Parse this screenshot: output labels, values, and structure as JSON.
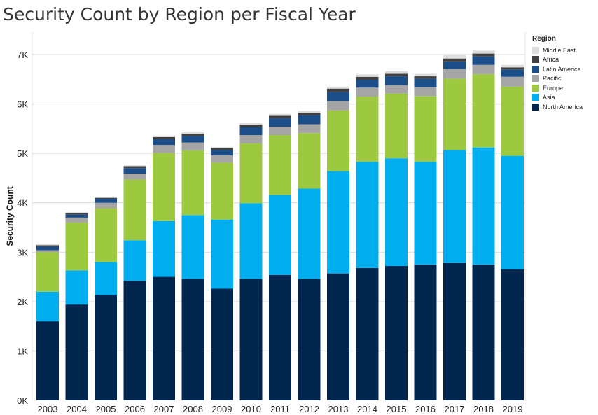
{
  "chart_data": {
    "type": "bar",
    "stacked": true,
    "title": "Security Count by Region per Fiscal Year",
    "xlabel": "",
    "ylabel": "Security Count",
    "ylim": [
      0,
      7000
    ],
    "yticks": [
      0,
      1000,
      2000,
      3000,
      4000,
      5000,
      6000,
      7000
    ],
    "ytick_labels": [
      "0K",
      "1K",
      "2K",
      "3K",
      "4K",
      "5K",
      "6K",
      "7K"
    ],
    "grid": true,
    "legend_title": "Region",
    "legend_position": "top-right",
    "categories": [
      "2003",
      "2004",
      "2005",
      "2006",
      "2007",
      "2008",
      "2009",
      "2010",
      "2011",
      "2012",
      "2013",
      "2014",
      "2015",
      "2016",
      "2017",
      "2018",
      "2019"
    ],
    "series": [
      {
        "name": "North America",
        "color": "#00264d",
        "values": [
          1600,
          1940,
          2130,
          2420,
          2500,
          2460,
          2260,
          2460,
          2540,
          2460,
          2570,
          2680,
          2720,
          2750,
          2780,
          2750,
          2650
        ]
      },
      {
        "name": "Asia",
        "color": "#00adef",
        "values": [
          600,
          690,
          670,
          820,
          1130,
          1290,
          1400,
          1530,
          1620,
          1830,
          2070,
          2150,
          2180,
          2080,
          2290,
          2370,
          2300
        ]
      },
      {
        "name": "Europe",
        "color": "#9dc940",
        "values": [
          800,
          970,
          1090,
          1230,
          1380,
          1310,
          1150,
          1210,
          1210,
          1120,
          1230,
          1320,
          1310,
          1330,
          1440,
          1480,
          1400
        ]
      },
      {
        "name": "Pacific",
        "color": "#a5a5a5",
        "values": [
          40,
          100,
          110,
          120,
          160,
          160,
          150,
          170,
          170,
          180,
          190,
          180,
          170,
          180,
          200,
          190,
          200
        ]
      },
      {
        "name": "Latin America",
        "color": "#1c4f8a",
        "values": [
          70,
          60,
          80,
          110,
          120,
          130,
          110,
          160,
          170,
          180,
          180,
          160,
          180,
          170,
          150,
          170,
          150
        ]
      },
      {
        "name": "Africa",
        "color": "#404040",
        "values": [
          30,
          30,
          20,
          40,
          40,
          50,
          40,
          50,
          50,
          50,
          70,
          60,
          50,
          50,
          60,
          60,
          40
        ]
      },
      {
        "name": "Middle East",
        "color": "#dddddd",
        "values": [
          20,
          20,
          20,
          20,
          30,
          30,
          20,
          30,
          40,
          40,
          40,
          50,
          50,
          50,
          70,
          60,
          50
        ]
      }
    ]
  }
}
